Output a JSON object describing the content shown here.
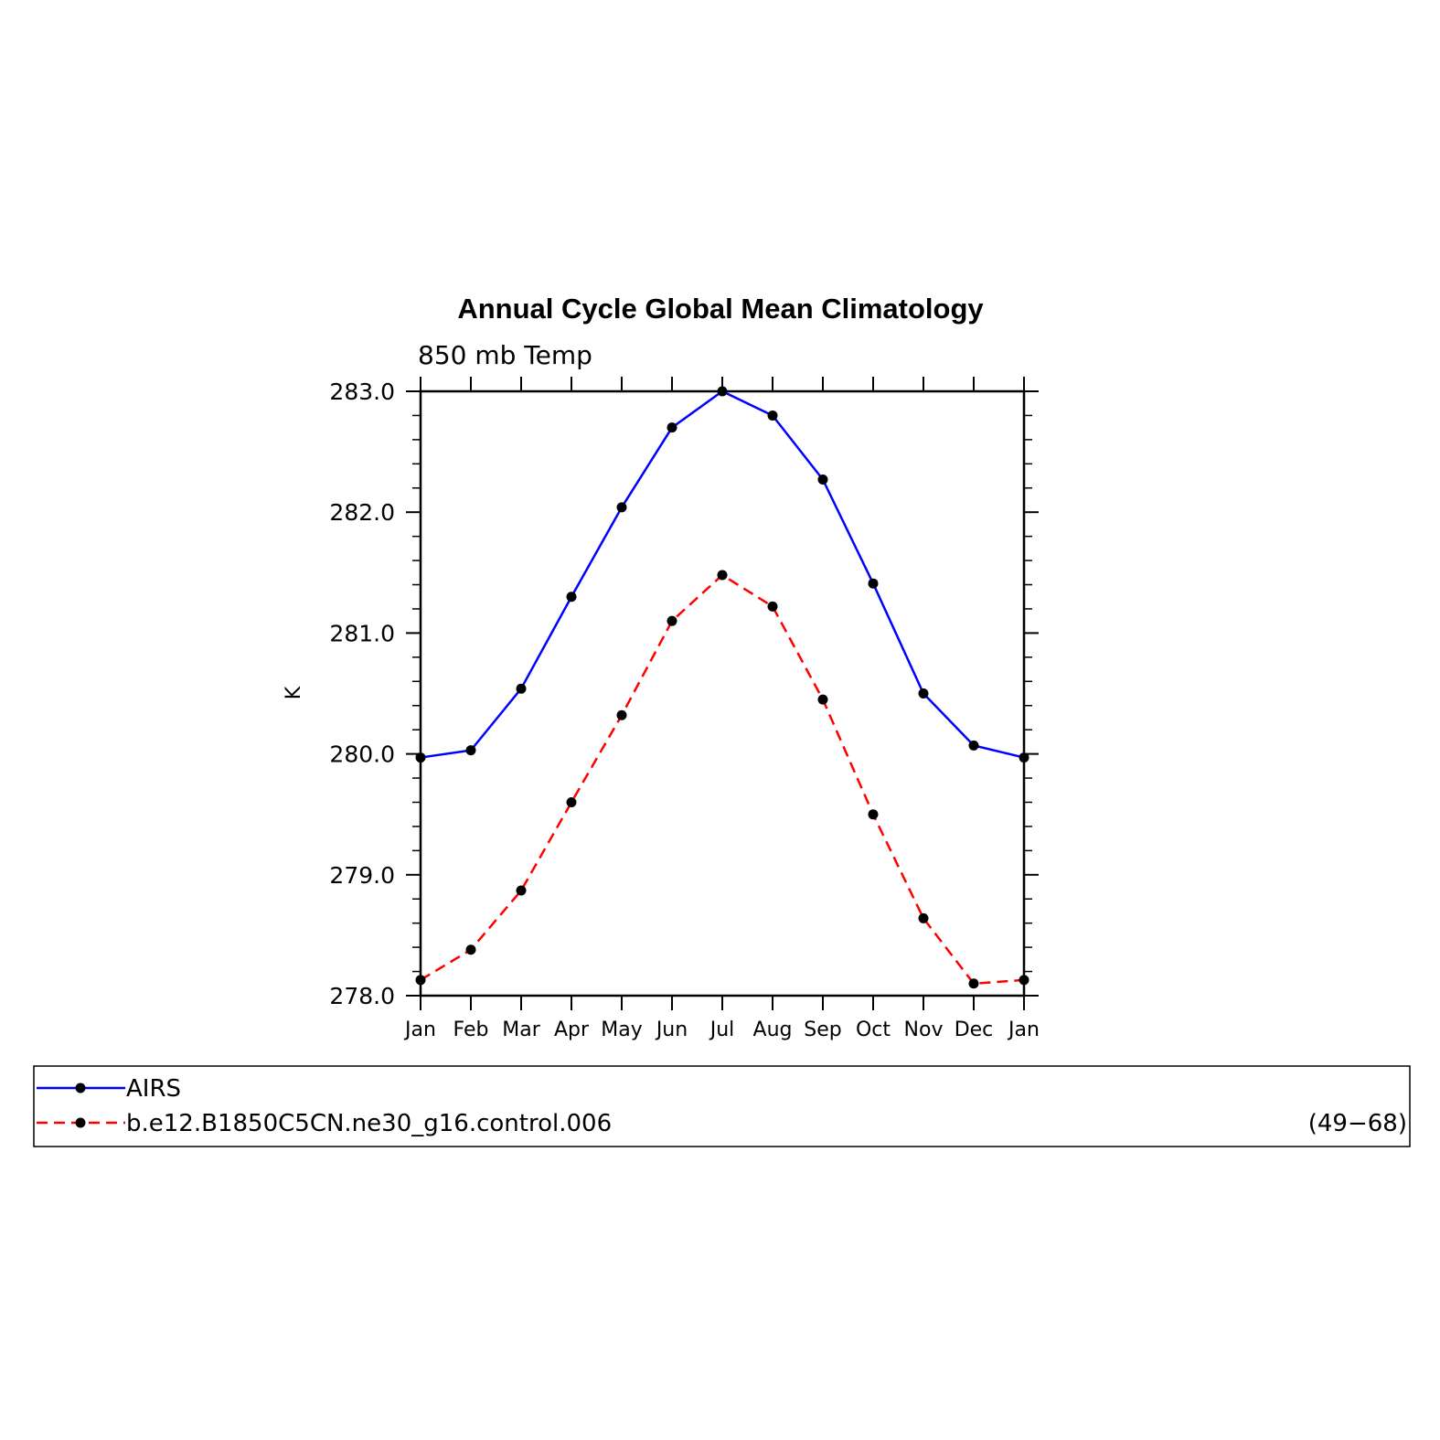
{
  "chart_data": {
    "type": "line",
    "title": "Annual Cycle Global Mean Climatology",
    "subtitle": "850 mb Temp",
    "xlabel": "",
    "ylabel": "K",
    "categories": [
      "Jan",
      "Feb",
      "Mar",
      "Apr",
      "May",
      "Jun",
      "Jul",
      "Aug",
      "Sep",
      "Oct",
      "Nov",
      "Dec",
      "Jan"
    ],
    "ylim": [
      278.0,
      283.0
    ],
    "y_ticks": [
      "278.0",
      "279.0",
      "280.0",
      "281.0",
      "282.0",
      "283.0"
    ],
    "grid": false,
    "legend_position": "bottom",
    "series": [
      {
        "name": "AIRS",
        "color": "#0000ff",
        "line_style": "solid",
        "marker": "filled-circle",
        "values": [
          279.97,
          280.03,
          280.54,
          281.3,
          282.04,
          282.7,
          283.0,
          282.8,
          282.27,
          281.41,
          280.5,
          280.07,
          279.97
        ]
      },
      {
        "name": "b.e12.B1850C5CN.ne30_g16.control.006",
        "years": "(49−68)",
        "color": "#ff0000",
        "line_style": "dashed",
        "marker": "filled-circle",
        "values": [
          278.13,
          278.38,
          278.87,
          279.6,
          280.32,
          281.1,
          281.48,
          281.22,
          280.45,
          279.5,
          278.64,
          278.1,
          278.13
        ]
      }
    ]
  }
}
